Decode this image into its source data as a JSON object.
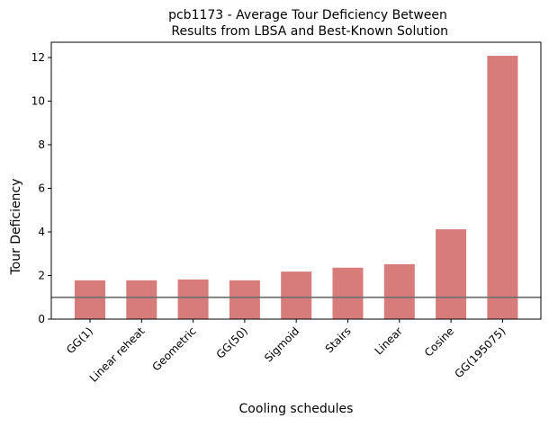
{
  "chart_data": {
    "type": "bar",
    "title_line1": "pcb1173 - Average Tour Deficiency Between",
    "title_line2": " Results from LBSA and Best-Known Solution",
    "xlabel": "Cooling schedules",
    "ylabel": "Tour Deficiency",
    "categories": [
      "GG(1)",
      "Linear reheat",
      "Geometric",
      "GG(50)",
      "Sigmoid",
      "Stairs",
      "Linear",
      "Cosine",
      "GG(195075)"
    ],
    "values": [
      1.78,
      1.78,
      1.82,
      1.78,
      2.18,
      2.36,
      2.52,
      4.12,
      12.08
    ],
    "ylim": [
      0,
      12.7
    ],
    "yticks": [
      "0",
      "2",
      "4",
      "6",
      "8",
      "10",
      "12"
    ],
    "reference_line": 1.0,
    "grid": false,
    "colors": {
      "bar": "#d77b7b",
      "reference_line": "#707070",
      "axes": "#000000"
    }
  }
}
